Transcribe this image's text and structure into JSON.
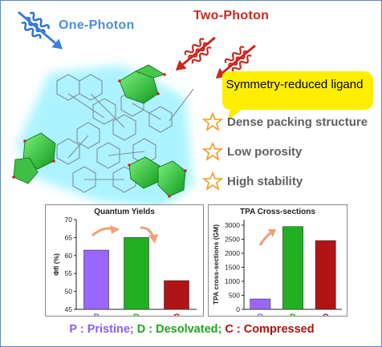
{
  "header": {
    "one_photon": "One-Photon",
    "two_photon": "Two-Photon"
  },
  "callout": {
    "text": "Symmetry-reduced ligand",
    "color": "#ffee00"
  },
  "features": [
    {
      "label": "Dense packing structure",
      "icon": "star-outline-icon"
    },
    {
      "label": "Low porosity",
      "icon": "star-outline-icon"
    },
    {
      "label": "High stability",
      "icon": "star-outline-icon"
    }
  ],
  "chart_data": [
    {
      "type": "bar",
      "title": "Quantum Yields",
      "ylabel": "Φfl (%)",
      "categories": [
        "P",
        "D",
        "C"
      ],
      "values": [
        61.5,
        65,
        53
      ],
      "ylim": [
        45,
        70
      ],
      "yticks": [
        "45",
        "50",
        "55",
        "60",
        "65",
        "70"
      ],
      "colors": [
        "#9966ff",
        "#22b022",
        "#b01414"
      ]
    },
    {
      "type": "bar",
      "title": "TPA Cross-sections",
      "ylabel": "TPA cross-sections (GM)",
      "categories": [
        "P",
        "D",
        "C"
      ],
      "values": [
        370,
        2950,
        2450
      ],
      "ylim": [
        0,
        3200
      ],
      "yticks": [
        "0",
        "500",
        "1000",
        "1500",
        "2000",
        "2500",
        "3000"
      ],
      "colors": [
        "#9966ff",
        "#22b022",
        "#b01414"
      ]
    }
  ],
  "legend": {
    "p": "P : Pristine;",
    "d": "D : Desolvated;",
    "c": "C : Compressed"
  }
}
